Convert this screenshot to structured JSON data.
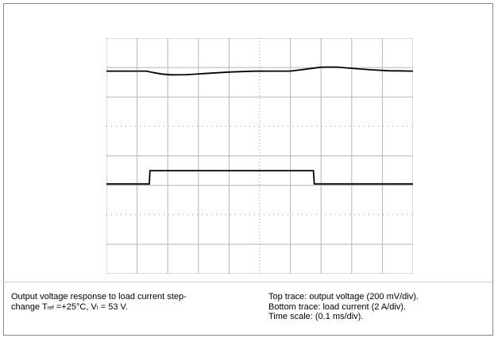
{
  "caption_left": {
    "line1": "Output voltage response to load current step-",
    "line2_prefix": "change  T",
    "line2_sub1": "ref",
    "line2_mid": " =+25°C, V",
    "line2_sub2": "I",
    "line2_suffix": " = 53 V."
  },
  "caption_right": {
    "line1": "Top trace: output voltage (200 mV/div).",
    "line2": "Bottom trace: load current (2 A/div).",
    "line3": "Time scale: (0.1 ms/div)."
  },
  "colors": {
    "trace": "#000000",
    "grid": "#b5b5b5",
    "dotted_grid": "#9a9a9a"
  },
  "chart_data": {
    "type": "line",
    "x_divisions": 10,
    "y_divisions": 8,
    "grid": true,
    "series": [
      {
        "x": [
          0,
          1.3,
          1.5,
          1.8,
          2.1,
          2.6,
          3.2,
          4.0,
          4.8,
          5.5,
          6.0,
          6.6,
          7.0,
          7.5,
          8.0,
          8.6,
          9.2,
          10.0
        ],
        "values": [
          -0.0,
          -0.0,
          -0.2,
          -0.45,
          -0.58,
          -0.55,
          -0.38,
          -0.15,
          -0.02,
          0.0,
          -0.0,
          0.35,
          0.6,
          0.62,
          0.42,
          0.2,
          0.05,
          -0.0
        ]
      },
      {
        "x": [
          0,
          1.4,
          1.42,
          6.75,
          6.78,
          10.0
        ],
        "values": [
          0,
          0,
          1,
          1,
          0,
          0
        ]
      }
    ]
  }
}
